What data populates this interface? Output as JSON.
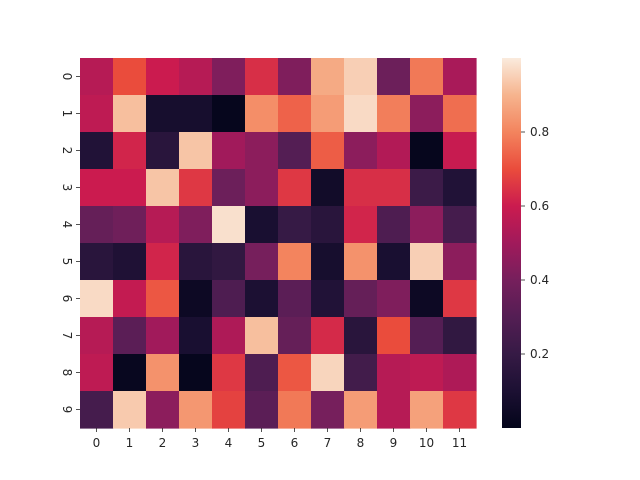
{
  "chart_data": {
    "type": "heatmap",
    "title": "",
    "xlabel": "",
    "ylabel": "",
    "x_categories": [
      "0",
      "1",
      "2",
      "3",
      "4",
      "5",
      "6",
      "7",
      "8",
      "9",
      "10",
      "11"
    ],
    "y_categories": [
      "0",
      "1",
      "2",
      "3",
      "4",
      "5",
      "6",
      "7",
      "8",
      "9"
    ],
    "values": [
      [
        0.55,
        0.7,
        0.6,
        0.55,
        0.42,
        0.64,
        0.42,
        0.88,
        0.95,
        0.37,
        0.78,
        0.52
      ],
      [
        0.57,
        0.92,
        0.08,
        0.08,
        0.01,
        0.82,
        0.74,
        0.85,
        0.97,
        0.79,
        0.45,
        0.76
      ],
      [
        0.12,
        0.62,
        0.15,
        0.93,
        0.5,
        0.45,
        0.3,
        0.73,
        0.45,
        0.54,
        0.01,
        0.59
      ],
      [
        0.6,
        0.6,
        0.93,
        0.66,
        0.37,
        0.45,
        0.66,
        0.06,
        0.64,
        0.64,
        0.22,
        0.12
      ],
      [
        0.35,
        0.38,
        0.55,
        0.42,
        0.98,
        0.09,
        0.2,
        0.15,
        0.62,
        0.28,
        0.45,
        0.25
      ],
      [
        0.15,
        0.11,
        0.62,
        0.15,
        0.18,
        0.4,
        0.8,
        0.08,
        0.83,
        0.09,
        0.95,
        0.45
      ],
      [
        0.97,
        0.58,
        0.72,
        0.04,
        0.28,
        0.1,
        0.32,
        0.12,
        0.35,
        0.42,
        0.04,
        0.66
      ],
      [
        0.55,
        0.32,
        0.5,
        0.09,
        0.53,
        0.92,
        0.35,
        0.63,
        0.15,
        0.7,
        0.3,
        0.18
      ],
      [
        0.57,
        0.02,
        0.83,
        0.01,
        0.66,
        0.28,
        0.72,
        0.96,
        0.24,
        0.55,
        0.57,
        0.53
      ],
      [
        0.25,
        0.94,
        0.45,
        0.84,
        0.68,
        0.32,
        0.78,
        0.4,
        0.85,
        0.55,
        0.86,
        0.66
      ]
    ],
    "colorbar": {
      "min": 0.0,
      "max": 1.0,
      "ticks": [
        0.2,
        0.4,
        0.6,
        0.8
      ],
      "tick_labels": [
        "0.2",
        "0.4",
        "0.6",
        "0.8"
      ],
      "colormap": "rocket"
    },
    "grid": false,
    "legend": "colorbar-right"
  },
  "colormap_stops": [
    [
      0.0,
      "#03051a"
    ],
    [
      0.1,
      "#1c1033"
    ],
    [
      0.2,
      "#361a45"
    ],
    [
      0.3,
      "#541e54"
    ],
    [
      0.4,
      "#761f5c"
    ],
    [
      0.5,
      "#a11a5b"
    ],
    [
      0.6,
      "#cb1b4f"
    ],
    [
      0.7,
      "#ea4c3c"
    ],
    [
      0.8,
      "#f3845e"
    ],
    [
      0.9,
      "#f6b48e"
    ],
    [
      1.0,
      "#faebdd"
    ]
  ]
}
